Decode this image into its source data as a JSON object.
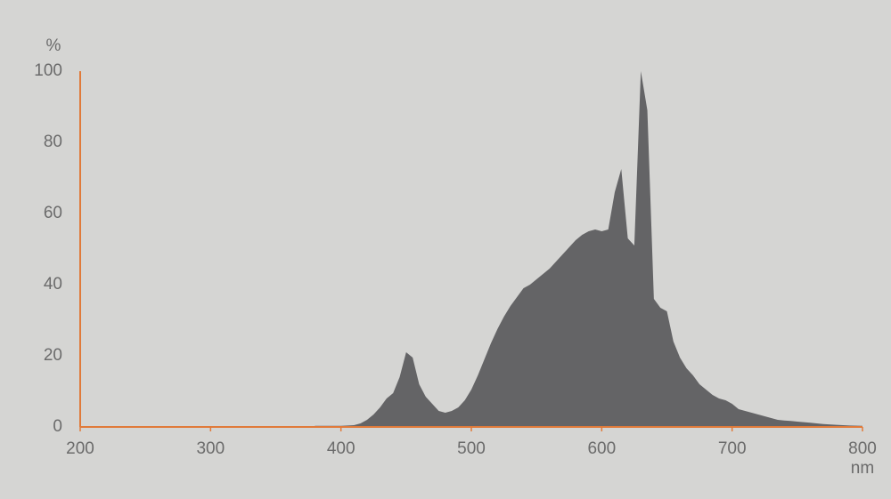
{
  "chart_data": {
    "type": "area",
    "ylabel": "%",
    "xlabel": "nm",
    "x": [
      380,
      400,
      410,
      415,
      420,
      425,
      430,
      435,
      440,
      445,
      450,
      455,
      460,
      465,
      470,
      475,
      480,
      485,
      490,
      495,
      500,
      505,
      510,
      515,
      520,
      525,
      530,
      535,
      540,
      545,
      550,
      555,
      560,
      565,
      570,
      575,
      580,
      585,
      590,
      595,
      600,
      605,
      610,
      615,
      620,
      625,
      630,
      635,
      640,
      645,
      650,
      655,
      660,
      665,
      670,
      675,
      680,
      685,
      690,
      695,
      700,
      705,
      710,
      715,
      720,
      725,
      730,
      735,
      740,
      745,
      750,
      760,
      770,
      780,
      790,
      800
    ],
    "values": [
      0.3,
      0.3,
      0.5,
      1,
      2,
      3.5,
      5.5,
      8,
      9.5,
      14,
      21,
      19.5,
      12,
      8.5,
      6.5,
      4.5,
      4,
      4.5,
      5.5,
      7.5,
      10.5,
      14.5,
      19,
      23.5,
      27.5,
      31,
      34,
      36.5,
      39,
      40,
      41.5,
      43,
      44.5,
      46.5,
      48.5,
      50.5,
      52.5,
      54,
      55,
      55.5,
      55,
      55.5,
      66,
      72.5,
      53,
      51,
      100,
      89,
      36,
      33.5,
      32.5,
      24,
      19.5,
      16.5,
      14.5,
      12,
      10.5,
      9,
      8,
      7.5,
      6.5,
      5,
      4.5,
      4,
      3.5,
      3,
      2.5,
      2,
      1.8,
      1.7,
      1.5,
      1.2,
      0.8,
      0.6,
      0.4,
      0.3
    ],
    "color": "#646466",
    "axis_color": "#e07a3a",
    "xlim": [
      200,
      800
    ],
    "xticks": [
      200,
      300,
      400,
      500,
      600,
      700,
      800
    ],
    "ylim": [
      0,
      100
    ],
    "yticks": [
      0,
      20,
      40,
      60,
      80,
      100
    ]
  }
}
